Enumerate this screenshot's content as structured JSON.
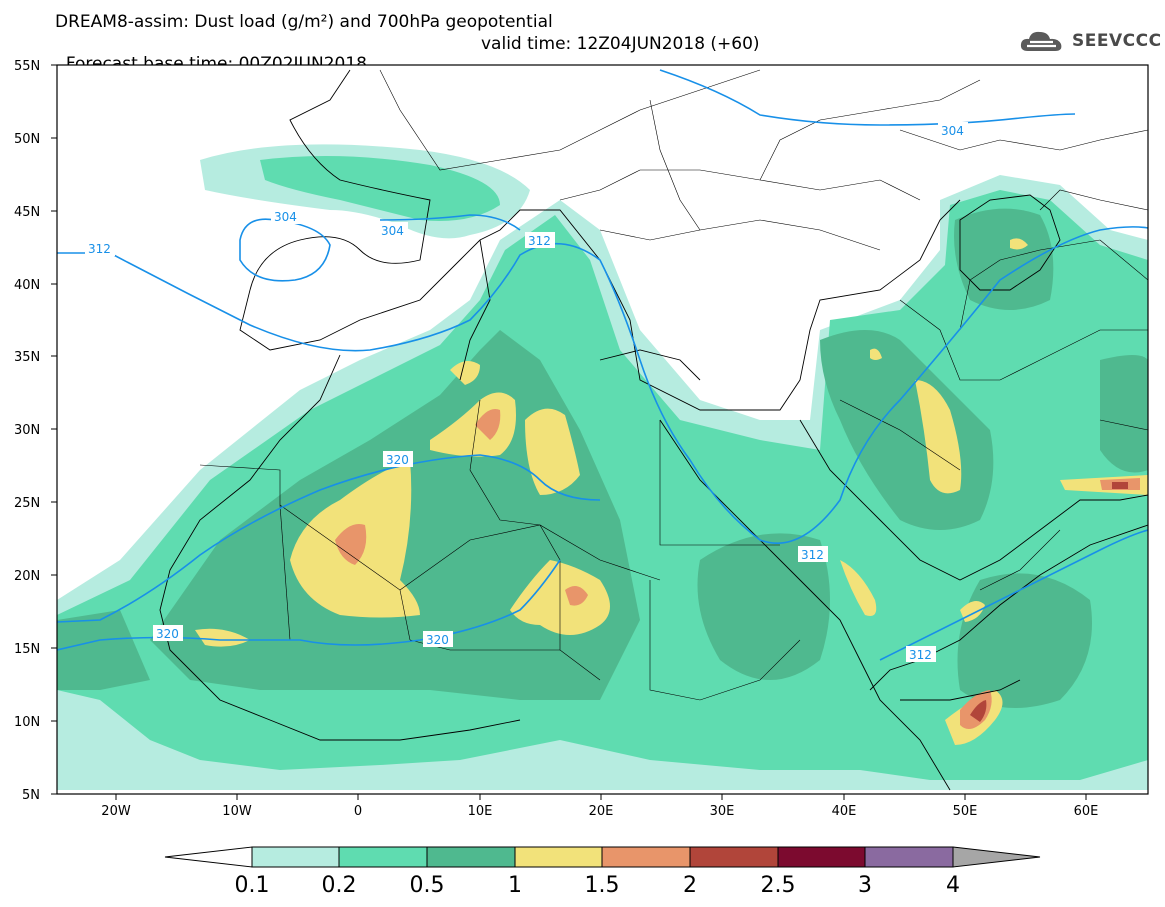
{
  "header": {
    "title_line1": "DREAM8-assim: Dust load (g/m²) and 700hPa geopotential",
    "title_line2_base": "Forecast base time: 00Z02JUN2018",
    "title_line2_valid": "valid time: 12Z04JUN2018 (+60)"
  },
  "logo": {
    "text": "SEEVCCC",
    "icon": "cloud-icon"
  },
  "map": {
    "lon_range": [
      -25,
      65
    ],
    "lat_range": [
      5,
      55
    ],
    "lat_labels": [
      "55N",
      "50N",
      "45N",
      "40N",
      "35N",
      "30N",
      "25N",
      "20N",
      "15N",
      "10N",
      "5N"
    ],
    "lon_labels": [
      "20W",
      "10W",
      "0",
      "10E",
      "20E",
      "30E",
      "40E",
      "50E",
      "60E"
    ],
    "contour_labels": [
      "304",
      "304",
      "304",
      "312",
      "312",
      "312",
      "312",
      "320",
      "320",
      "320"
    ]
  },
  "colorbar": {
    "labels": [
      "0.1",
      "0.2",
      "0.5",
      "1",
      "1.5",
      "2",
      "2.5",
      "3",
      "4"
    ],
    "colors": [
      "#b6ece0",
      "#5fdcb0",
      "#4fb98f",
      "#f2e27a",
      "#e8956a",
      "#b1453a",
      "#7c0a2f",
      "#8a6aa0",
      "#a6a6a6"
    ]
  }
}
